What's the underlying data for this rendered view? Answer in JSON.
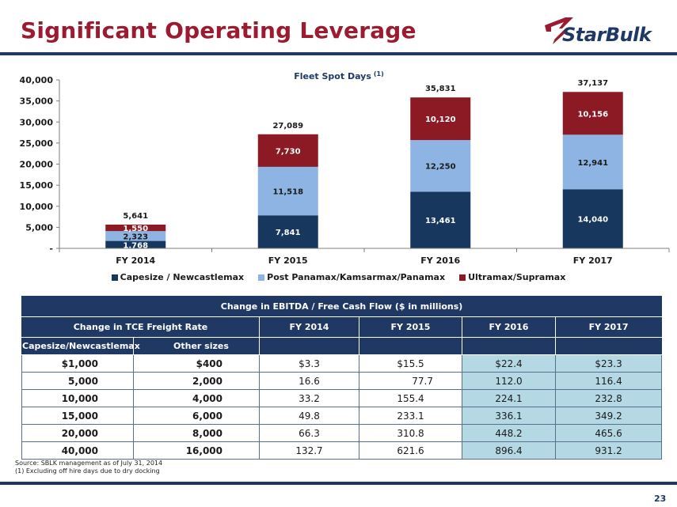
{
  "slide": {
    "title": "Significant Operating Leverage",
    "logo_text": "StarBulk",
    "page_number": "23"
  },
  "colors": {
    "brand_red": "#9b1b30",
    "navy": "#1f3864",
    "highlight": "#b4d8e4"
  },
  "chart_data": {
    "type": "bar",
    "stacked": true,
    "title": "Fleet Spot Days",
    "title_superscript": "(1)",
    "categories": [
      "FY 2014",
      "FY 2015",
      "FY 2016",
      "FY 2017"
    ],
    "series": [
      {
        "name": "Capesize / Newcastlemax",
        "color": "#17375e",
        "values": [
          1768,
          7841,
          13461,
          14040
        ]
      },
      {
        "name": "Post Panamax/Kamsarmax/Panamax",
        "color": "#8eb4e3",
        "values": [
          2323,
          11518,
          12250,
          12941
        ]
      },
      {
        "name": "Ultramax/Supramax",
        "color": "#8b1a24",
        "values": [
          1550,
          7730,
          10120,
          10156
        ]
      }
    ],
    "totals": [
      5641,
      27089,
      35831,
      37137
    ],
    "total_labels": [
      "5,641",
      "27,089",
      "35,831",
      "37,137"
    ],
    "value_labels": [
      [
        "1,768",
        "7,841",
        "13,461",
        "14,040"
      ],
      [
        "2,323",
        "11,518",
        "12,250",
        "12,941"
      ],
      [
        "1,550",
        "7,730",
        "10,120",
        "10,156"
      ]
    ],
    "ylim": [
      0,
      40000
    ],
    "yticks": [
      0,
      5000,
      10000,
      15000,
      20000,
      25000,
      30000,
      35000,
      40000
    ],
    "ytick_labels": [
      "-",
      "5,000",
      "10,000",
      "15,000",
      "20,000",
      "25,000",
      "30,000",
      "35,000",
      "40,000"
    ],
    "grid": false,
    "legend": "bottom"
  },
  "table": {
    "title": "Change in EBITDA / Free Cash Flow ($ in millions)",
    "rate_header": "Change in TCE Freight Rate",
    "year_headers": [
      "FY 2014",
      "FY 2015",
      "FY 2016",
      "FY 2017"
    ],
    "sub_headers": [
      "Capesize/Newcastlemax",
      "Other sizes"
    ],
    "rows": [
      {
        "cape": "$1,000",
        "other": "$400",
        "vals": [
          "$3.3",
          "$15.5",
          "$22.4",
          "$23.3"
        ]
      },
      {
        "cape": "5,000",
        "other": "2,000",
        "vals": [
          "16.6",
          "77.7",
          "112.0",
          "116.4"
        ]
      },
      {
        "cape": "10,000",
        "other": "4,000",
        "vals": [
          "33.2",
          "155.4",
          "224.1",
          "232.8"
        ]
      },
      {
        "cape": "15,000",
        "other": "6,000",
        "vals": [
          "49.8",
          "233.1",
          "336.1",
          "349.2"
        ]
      },
      {
        "cape": "20,000",
        "other": "8,000",
        "vals": [
          "66.3",
          "310.8",
          "448.2",
          "465.6"
        ]
      },
      {
        "cape": "40,000",
        "other": "16,000",
        "vals": [
          "132.7",
          "621.6",
          "896.4",
          "931.2"
        ]
      }
    ]
  },
  "footnotes": {
    "source": "Source: SBLK management as of July 31, 2014",
    "note1": "(1) Excluding off hire days due to dry docking"
  }
}
